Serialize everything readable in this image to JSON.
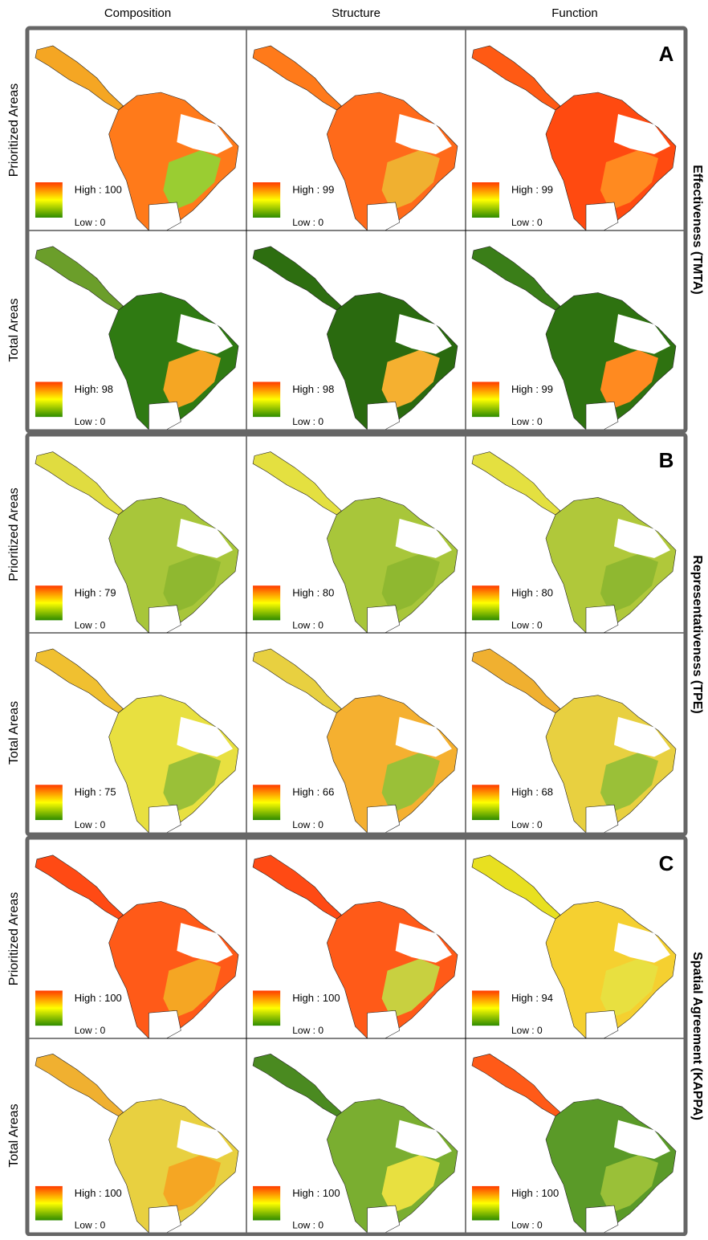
{
  "columns": [
    "Composition",
    "Structure",
    "Function"
  ],
  "panels": [
    {
      "letter": "A",
      "side_label": "Effectiveness (TMTA)",
      "rows": [
        {
          "label": "Prioritized Areas",
          "cells": [
            {
              "high": "High : 100",
              "low": "Low : 0"
            },
            {
              "high": "High : 99",
              "low": "Low : 0"
            },
            {
              "high": "High : 99",
              "low": "Low : 0"
            }
          ]
        },
        {
          "label": "Total Areas",
          "cells": [
            {
              "high": "High: 98",
              "low": "Low : 0"
            },
            {
              "high": "High : 98",
              "low": "Low : 0"
            },
            {
              "high": "High : 99",
              "low": "Low : 0"
            }
          ]
        }
      ]
    },
    {
      "letter": "B",
      "side_label": "Representativeness (TPE)",
      "rows": [
        {
          "label": "Prioritized Areas",
          "cells": [
            {
              "high": "High : 79",
              "low": "Low : 0"
            },
            {
              "high": "High : 80",
              "low": "Low : 0"
            },
            {
              "high": "High : 80",
              "low": "Low : 0"
            }
          ]
        },
        {
          "label": "Total Areas",
          "cells": [
            {
              "high": "High : 75",
              "low": "Low : 0"
            },
            {
              "high": "High : 66",
              "low": "Low : 0"
            },
            {
              "high": "High : 68",
              "low": "Low : 0"
            }
          ]
        }
      ]
    },
    {
      "letter": "C",
      "side_label": "Spatial Agreement (KAPPA)",
      "rows": [
        {
          "label": "Prioritized Areas",
          "cells": [
            {
              "high": "High : 100",
              "low": "Low : 0"
            },
            {
              "high": "High : 100",
              "low": "Low : 0"
            },
            {
              "high": "High : 94",
              "low": "Low : 0"
            }
          ]
        },
        {
          "label": "Total Areas",
          "cells": [
            {
              "high": "High : 100",
              "low": "Low : 0"
            },
            {
              "high": "High : 100",
              "low": "Low : 0"
            },
            {
              "high": "High : 100",
              "low": "Low : 0"
            }
          ]
        }
      ]
    }
  ]
}
